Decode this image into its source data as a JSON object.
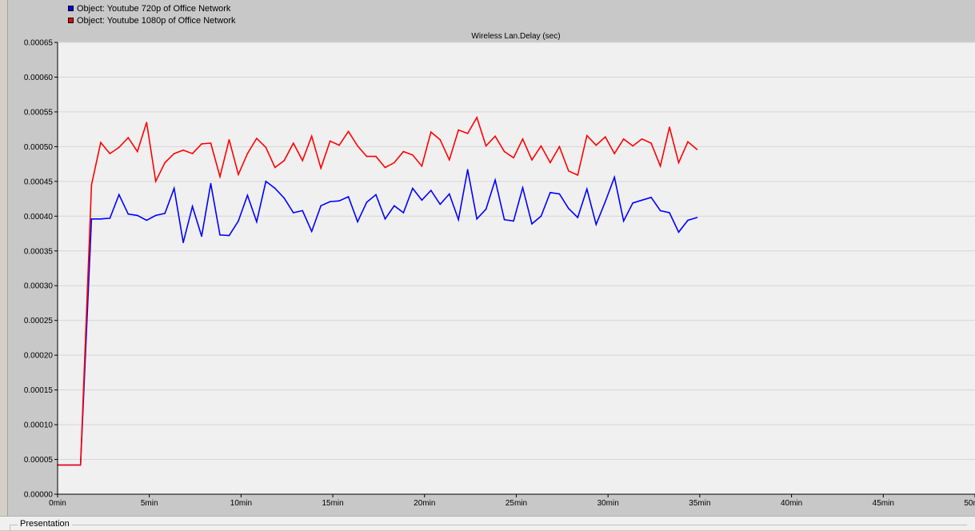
{
  "legend": [
    {
      "label": "Object: Youtube 720p of Office Network",
      "color": "#0000ff"
    },
    {
      "label": "Object: Youtube 1080p of Office Network",
      "color": "#ff0000"
    }
  ],
  "footer": {
    "label": "Presentation"
  },
  "chart_data": {
    "type": "line",
    "title": "Wireless Lan.Delay (sec)",
    "xlabel": "",
    "ylabel": "",
    "x_unit": "min",
    "xlim": [
      0,
      50
    ],
    "ylim": [
      0,
      0.00065
    ],
    "x_ticks": [
      "0min",
      "5min",
      "10min",
      "15min",
      "20min",
      "25min",
      "30min",
      "35min",
      "40min",
      "45min",
      "50min"
    ],
    "y_ticks": [
      "0.00000",
      "0.00005",
      "0.00010",
      "0.00015",
      "0.00020",
      "0.00025",
      "0.00030",
      "0.00035",
      "0.00040",
      "0.00045",
      "0.00050",
      "0.00055",
      "0.00060",
      "0.00065"
    ],
    "grid": true,
    "legend_position": "top-left",
    "series": [
      {
        "name": "Object: Youtube 720p of Office Network",
        "color": "#0000ff",
        "points": [
          [
            0.0,
            4.2e-05
          ],
          [
            1.25,
            4.2e-05
          ],
          [
            1.85,
            0.000396
          ],
          [
            2.35,
            0.000396
          ],
          [
            2.85,
            0.000397
          ],
          [
            3.35,
            0.000431
          ],
          [
            3.85,
            0.000403
          ],
          [
            4.35,
            0.000401
          ],
          [
            4.85,
            0.000394
          ],
          [
            5.35,
            0.000401
          ],
          [
            5.85,
            0.000404
          ],
          [
            6.35,
            0.00044
          ],
          [
            6.85,
            0.000362
          ],
          [
            7.35,
            0.000414
          ],
          [
            7.85,
            0.000371
          ],
          [
            8.35,
            0.000447
          ],
          [
            8.85,
            0.000373
          ],
          [
            9.35,
            0.000372
          ],
          [
            9.85,
            0.000393
          ],
          [
            10.35,
            0.00043
          ],
          [
            10.85,
            0.000392
          ],
          [
            11.35,
            0.00045
          ],
          [
            11.85,
            0.00044
          ],
          [
            12.35,
            0.000426
          ],
          [
            12.85,
            0.000405
          ],
          [
            13.35,
            0.000408
          ],
          [
            13.85,
            0.000378
          ],
          [
            14.35,
            0.000415
          ],
          [
            14.85,
            0.000421
          ],
          [
            15.35,
            0.000422
          ],
          [
            15.85,
            0.000428
          ],
          [
            16.35,
            0.000392
          ],
          [
            16.85,
            0.00042
          ],
          [
            17.35,
            0.000431
          ],
          [
            17.85,
            0.000396
          ],
          [
            18.35,
            0.000415
          ],
          [
            18.85,
            0.000405
          ],
          [
            19.35,
            0.00044
          ],
          [
            19.85,
            0.000423
          ],
          [
            20.35,
            0.000437
          ],
          [
            20.85,
            0.000417
          ],
          [
            21.35,
            0.000432
          ],
          [
            21.85,
            0.000395
          ],
          [
            22.35,
            0.000467
          ],
          [
            22.85,
            0.000396
          ],
          [
            23.35,
            0.00041
          ],
          [
            23.85,
            0.000452
          ],
          [
            24.35,
            0.000395
          ],
          [
            24.85,
            0.000393
          ],
          [
            25.35,
            0.000441
          ],
          [
            25.85,
            0.000389
          ],
          [
            26.35,
            0.0004
          ],
          [
            26.85,
            0.000434
          ],
          [
            27.35,
            0.000432
          ],
          [
            27.85,
            0.000411
          ],
          [
            28.35,
            0.000398
          ],
          [
            28.85,
            0.000439
          ],
          [
            29.35,
            0.000388
          ],
          [
            29.85,
            0.000421
          ],
          [
            30.35,
            0.000456
          ],
          [
            30.85,
            0.000393
          ],
          [
            31.35,
            0.000419
          ],
          [
            31.85,
            0.000423
          ],
          [
            32.35,
            0.000427
          ],
          [
            32.85,
            0.000408
          ],
          [
            33.35,
            0.000405
          ],
          [
            33.85,
            0.000377
          ],
          [
            34.35,
            0.000394
          ],
          [
            34.85,
            0.000398
          ]
        ]
      },
      {
        "name": "Object: Youtube 1080p of Office Network",
        "color": "#ff0000",
        "points": [
          [
            0.0,
            4.2e-05
          ],
          [
            1.25,
            4.2e-05
          ],
          [
            1.85,
            0.000445
          ],
          [
            2.35,
            0.000506
          ],
          [
            2.85,
            0.00049
          ],
          [
            3.35,
            0.000499
          ],
          [
            3.85,
            0.000513
          ],
          [
            4.35,
            0.000493
          ],
          [
            4.85,
            0.000535
          ],
          [
            5.35,
            0.00045
          ],
          [
            5.85,
            0.000477
          ],
          [
            6.35,
            0.00049
          ],
          [
            6.85,
            0.000495
          ],
          [
            7.35,
            0.00049
          ],
          [
            7.85,
            0.000504
          ],
          [
            8.35,
            0.000505
          ],
          [
            8.85,
            0.000457
          ],
          [
            9.35,
            0.00051
          ],
          [
            9.85,
            0.00046
          ],
          [
            10.35,
            0.00049
          ],
          [
            10.85,
            0.000512
          ],
          [
            11.35,
            0.000499
          ],
          [
            11.85,
            0.00047
          ],
          [
            12.35,
            0.00048
          ],
          [
            12.85,
            0.000505
          ],
          [
            13.35,
            0.00048
          ],
          [
            13.85,
            0.000515
          ],
          [
            14.35,
            0.000469
          ],
          [
            14.85,
            0.000508
          ],
          [
            15.35,
            0.000502
          ],
          [
            15.85,
            0.000522
          ],
          [
            16.35,
            0.000501
          ],
          [
            16.85,
            0.000486
          ],
          [
            17.35,
            0.000486
          ],
          [
            17.85,
            0.00047
          ],
          [
            18.35,
            0.000477
          ],
          [
            18.85,
            0.000493
          ],
          [
            19.35,
            0.000488
          ],
          [
            19.85,
            0.000472
          ],
          [
            20.35,
            0.000521
          ],
          [
            20.85,
            0.00051
          ],
          [
            21.35,
            0.000481
          ],
          [
            21.85,
            0.000524
          ],
          [
            22.35,
            0.000519
          ],
          [
            22.85,
            0.000542
          ],
          [
            23.35,
            0.000501
          ],
          [
            23.85,
            0.000515
          ],
          [
            24.35,
            0.000493
          ],
          [
            24.85,
            0.000484
          ],
          [
            25.35,
            0.000511
          ],
          [
            25.85,
            0.000481
          ],
          [
            26.35,
            0.000501
          ],
          [
            26.85,
            0.000477
          ],
          [
            27.35,
            0.0005
          ],
          [
            27.85,
            0.000465
          ],
          [
            28.35,
            0.000459
          ],
          [
            28.85,
            0.000516
          ],
          [
            29.35,
            0.000502
          ],
          [
            29.85,
            0.000514
          ],
          [
            30.35,
            0.00049
          ],
          [
            30.85,
            0.000511
          ],
          [
            31.35,
            0.000501
          ],
          [
            31.85,
            0.000511
          ],
          [
            32.35,
            0.000505
          ],
          [
            32.85,
            0.000472
          ],
          [
            33.35,
            0.000528
          ],
          [
            33.85,
            0.000477
          ],
          [
            34.35,
            0.000507
          ],
          [
            34.85,
            0.000496
          ]
        ]
      }
    ]
  }
}
